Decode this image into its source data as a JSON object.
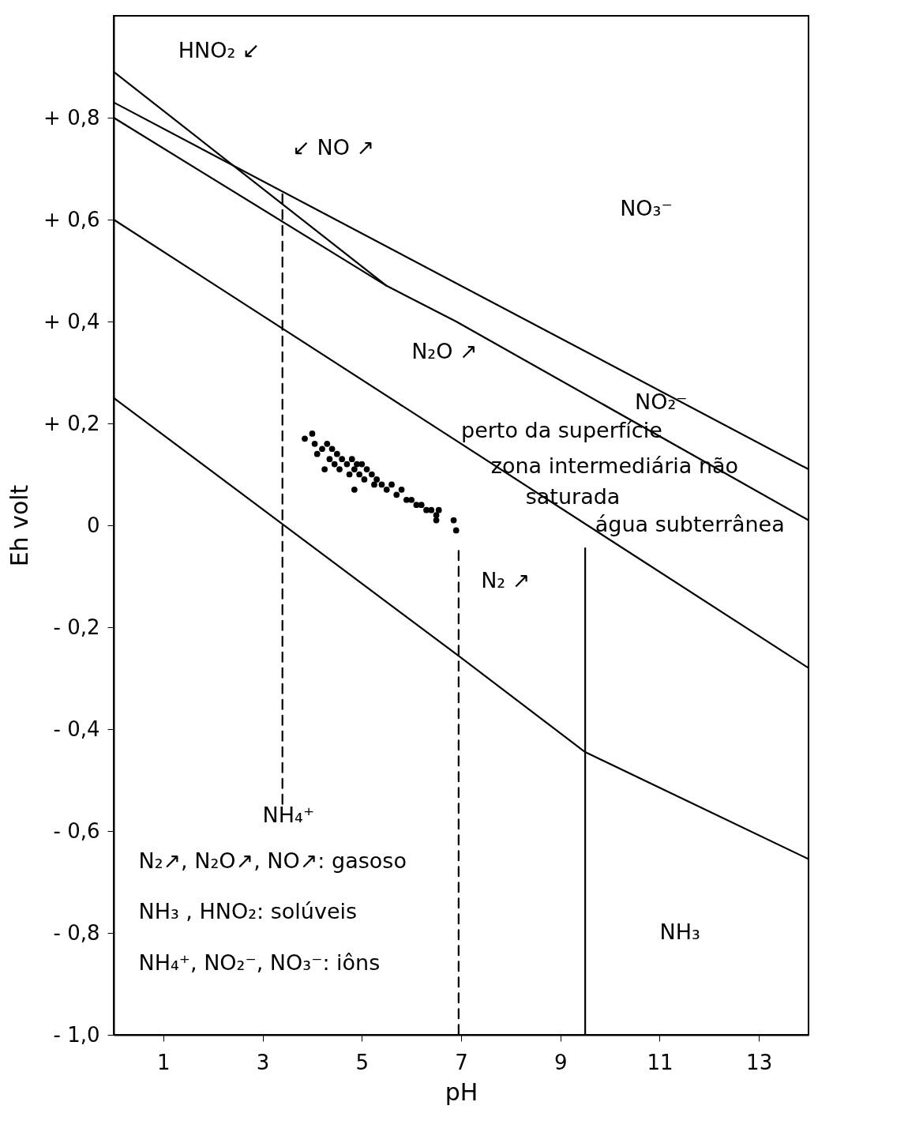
{
  "chart_data": {
    "type": "line",
    "xlabel": "pH",
    "ylabel": "Eh volt",
    "xlim": [
      0,
      14
    ],
    "ylim": [
      -1.0,
      1.0
    ],
    "xticks": [
      1,
      3,
      5,
      7,
      9,
      11,
      13
    ],
    "yticks": [
      {
        "value": 0.8,
        "label": "+ 0,8"
      },
      {
        "value": 0.6,
        "label": "+ 0,6"
      },
      {
        "value": 0.4,
        "label": "+ 0,4"
      },
      {
        "value": 0.2,
        "label": "+ 0,2"
      },
      0,
      {
        "value": -0.2,
        "label": "- 0,2"
      },
      {
        "value": -0.4,
        "label": "- 0,4"
      },
      {
        "value": -0.6,
        "label": "- 0,6"
      },
      {
        "value": -0.8,
        "label": "- 0,8"
      },
      {
        "value": -1.0,
        "label": "- 1,0"
      }
    ],
    "grid": false,
    "series": [
      {
        "type": "line",
        "color": "#000000",
        "line_style": "solid",
        "x": [
          0,
          7,
          9.5,
          14
        ],
        "values": [
          0.25,
          -0.26,
          -0.445,
          -0.655
        ]
      },
      {
        "type": "line",
        "color": "#000000",
        "line_style": "solid",
        "x": [
          0,
          14
        ],
        "values": [
          0.6,
          -0.28
        ]
      },
      {
        "type": "line",
        "color": "#000000",
        "line_style": "solid",
        "x": [
          0,
          5.5,
          6.9,
          14
        ],
        "values": [
          0.8,
          0.47,
          0.4,
          0.01
        ]
      },
      {
        "type": "line",
        "color": "#000000",
        "line_style": "solid",
        "x": [
          0,
          14
        ],
        "values": [
          0.83,
          0.11
        ]
      },
      {
        "type": "line",
        "color": "#000000",
        "line_style": "solid",
        "x": [
          0,
          5.5
        ],
        "values": [
          0.89,
          0.47
        ]
      },
      {
        "type": "line",
        "color": "#000000",
        "line_style": "dashed",
        "x": [
          3.4,
          3.4
        ],
        "values": [
          0.65,
          -0.55
        ]
      },
      {
        "type": "line",
        "color": "#000000",
        "line_style": "dashed",
        "x": [
          6.95,
          6.95
        ],
        "values": [
          -0.05,
          -1.0
        ]
      },
      {
        "type": "line",
        "color": "#000000",
        "line_style": "solid",
        "x": [
          9.5,
          9.5
        ],
        "values": [
          -0.045,
          -1.0
        ]
      },
      {
        "type": "scatter",
        "color": "#000000",
        "marker": "circle",
        "x": [
          3.85,
          4.0,
          4.05,
          4.1,
          4.2,
          4.25,
          4.3,
          4.35,
          4.4,
          4.45,
          4.5,
          4.55,
          4.6,
          4.7,
          4.75,
          4.8,
          4.85,
          4.85,
          4.9,
          4.95,
          5.0,
          5.05,
          5.1,
          5.2,
          5.25,
          5.3,
          5.4,
          5.5,
          5.6,
          5.7,
          5.8,
          5.9,
          6.0,
          6.1,
          6.2,
          6.3,
          6.4,
          6.5,
          6.5,
          6.55,
          6.85,
          6.9
        ],
        "values": [
          0.17,
          0.18,
          0.16,
          0.14,
          0.15,
          0.11,
          0.16,
          0.13,
          0.15,
          0.12,
          0.14,
          0.11,
          0.13,
          0.12,
          0.1,
          0.13,
          0.11,
          0.07,
          0.12,
          0.1,
          0.12,
          0.09,
          0.11,
          0.1,
          0.08,
          0.09,
          0.08,
          0.07,
          0.08,
          0.06,
          0.07,
          0.05,
          0.05,
          0.04,
          0.04,
          0.03,
          0.03,
          0.02,
          0.01,
          0.03,
          0.01,
          -0.01
        ]
      }
    ],
    "annotations": [
      "HNO₂ ↙",
      "↙ NO ↗",
      "NO₃⁻",
      "N₂O ↗",
      "NO₂⁻",
      "perto da superfície",
      "zona intermediária não",
      "saturada",
      "água subterrânea",
      "N₂ ↗",
      "NH₄⁺",
      "N₂↗, N₂O↗, NO↗: gasoso",
      "NH₃ , HNO₂: solúveis",
      "NH₄⁺, NO₂⁻, NO₃⁻: iôns",
      "NH₃"
    ]
  }
}
